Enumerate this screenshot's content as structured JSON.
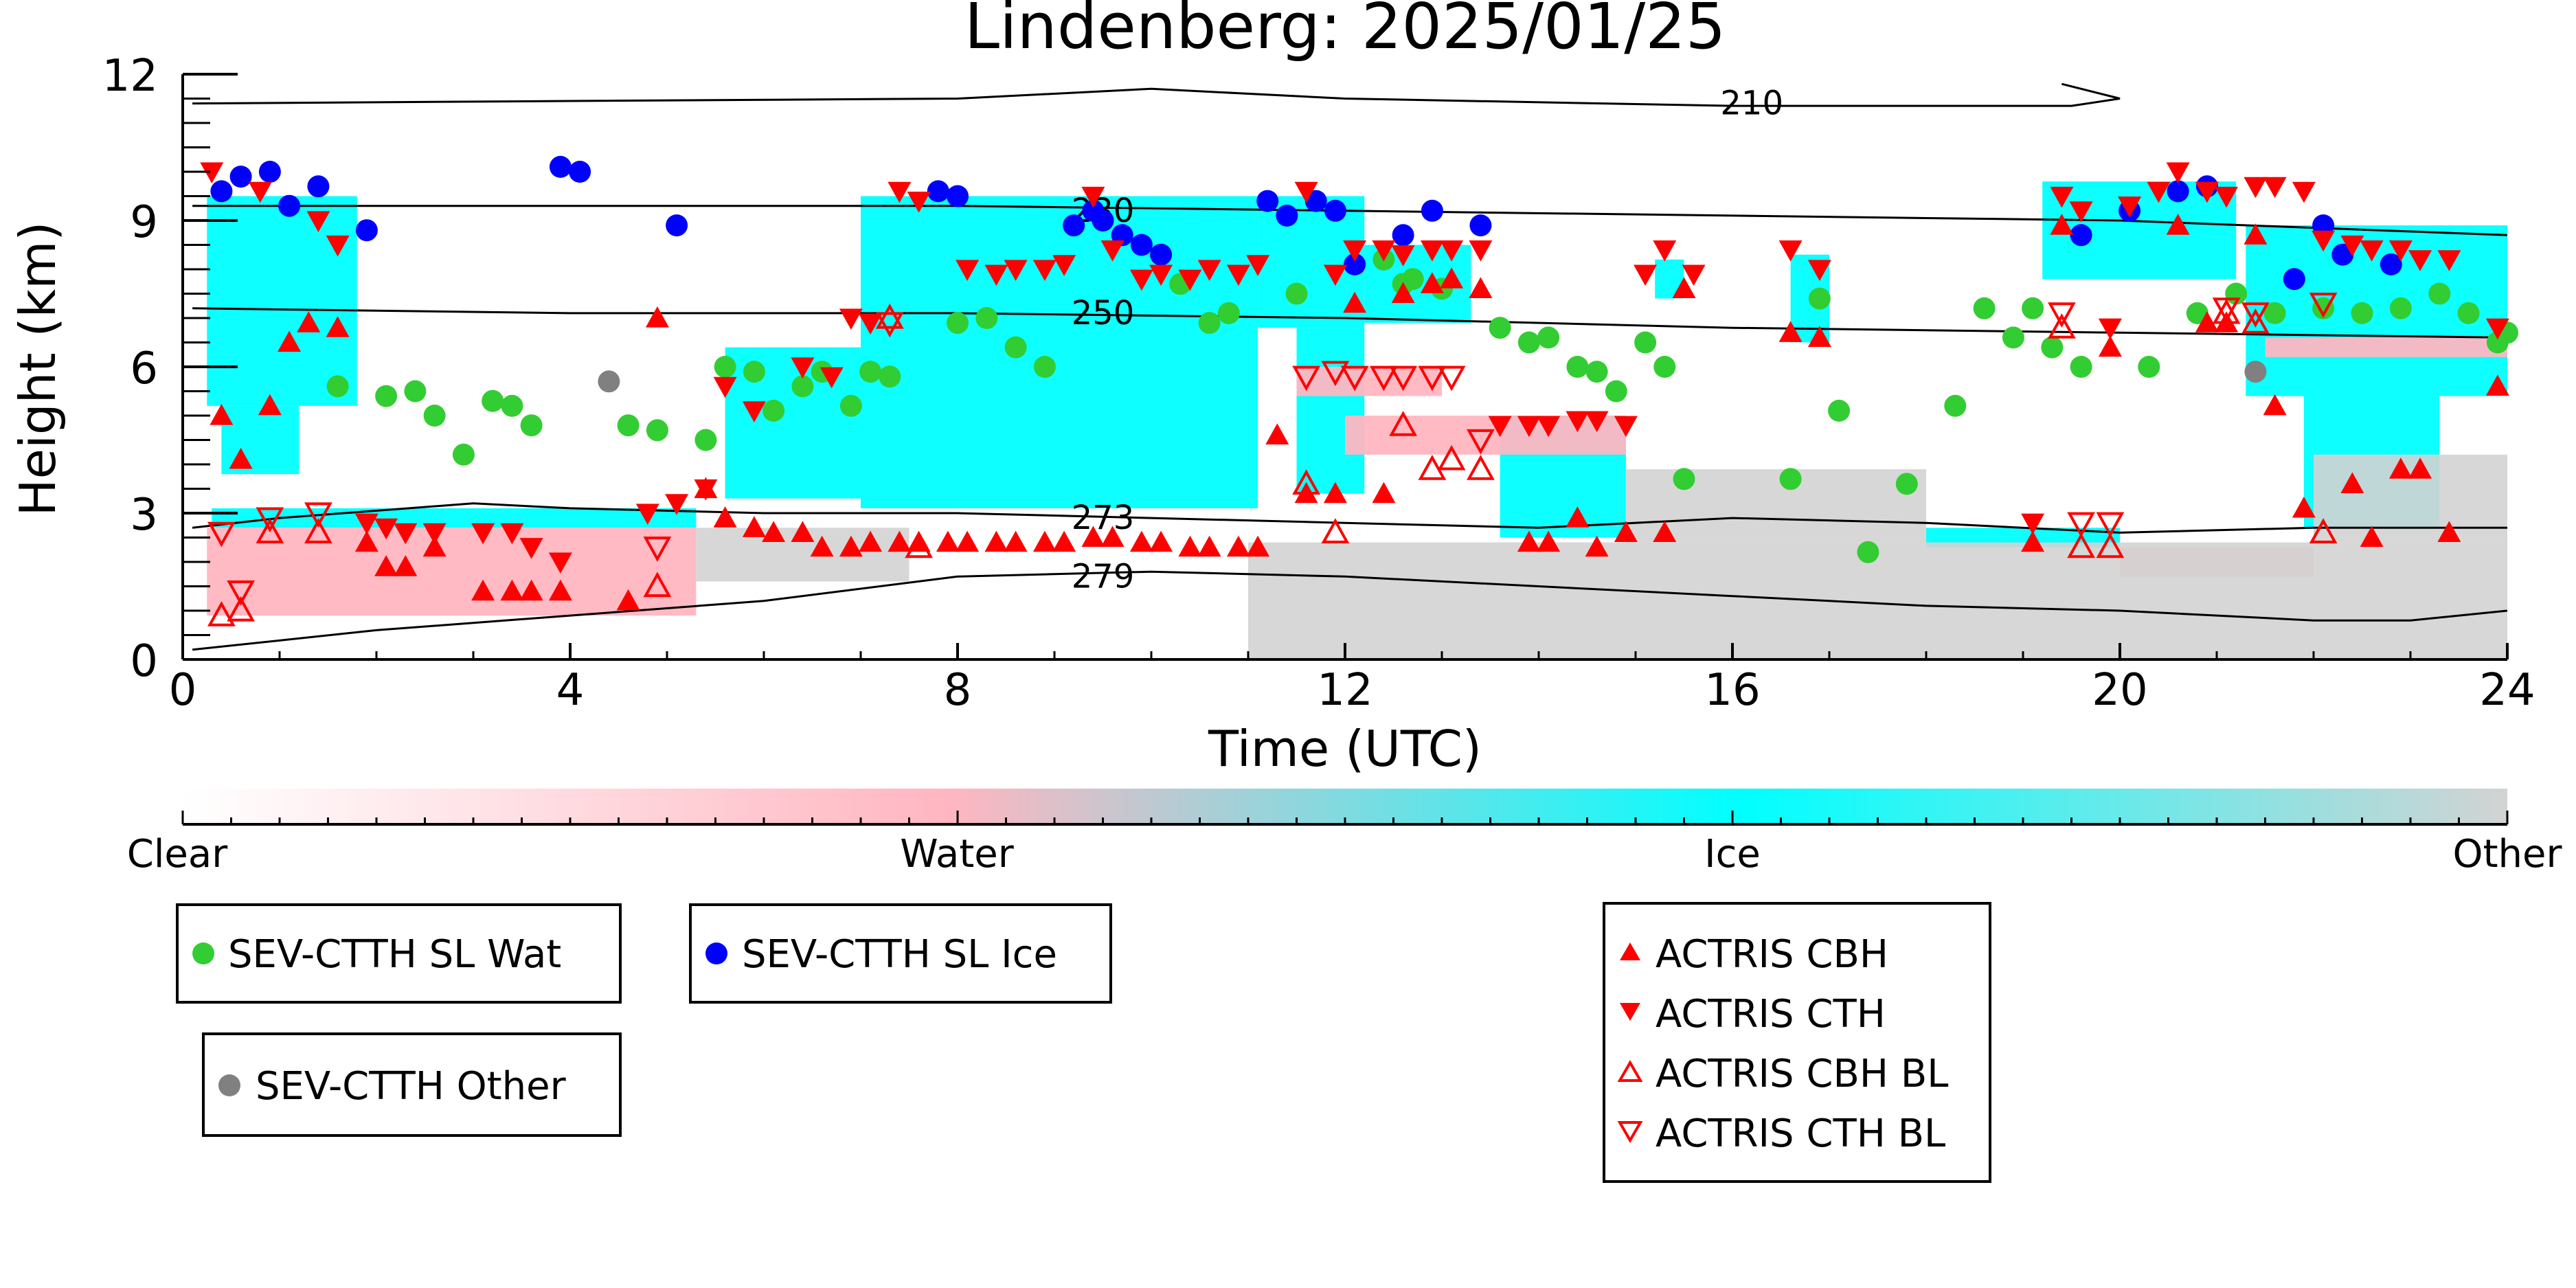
{
  "chart_data": {
    "type": "scatter",
    "title": "Lindenberg: 2025/01/25",
    "xlabel": "Time (UTC)",
    "ylabel": "Height (km)",
    "xlim": [
      0,
      24
    ],
    "ylim": [
      0,
      12
    ],
    "xticks": [
      0,
      4,
      8,
      12,
      16,
      20,
      24
    ],
    "yticks": [
      0,
      3,
      6,
      9,
      12
    ],
    "grid": false,
    "colorbar": {
      "orientation": "horizontal",
      "labels": [
        "Clear",
        "Water",
        "Ice",
        "Other"
      ],
      "colors": [
        "#ffffff",
        "#ffb6c1",
        "#00ffff",
        "#d3d3d3"
      ]
    },
    "colors": {
      "water": "#ffb6c1",
      "ice": "#00ffff",
      "other": "#d3d3d3",
      "sev_wat": "#32cd32",
      "sev_ice": "#0000ff",
      "sev_other": "#808080",
      "actris": "#ff0000"
    },
    "background_regions": [
      {
        "class": "ice",
        "x0": 0.25,
        "x1": 1.8,
        "y0": 5.2,
        "y1": 9.5
      },
      {
        "class": "ice",
        "x0": 0.4,
        "x1": 1.2,
        "y0": 3.8,
        "y1": 5.2
      },
      {
        "class": "ice",
        "x0": 5.6,
        "x1": 7.0,
        "y0": 3.3,
        "y1": 6.4
      },
      {
        "class": "ice",
        "x0": 7.0,
        "x1": 11.1,
        "y0": 3.1,
        "y1": 9.5
      },
      {
        "class": "ice",
        "x0": 11.1,
        "x1": 12.2,
        "y0": 6.8,
        "y1": 9.5
      },
      {
        "class": "ice",
        "x0": 11.5,
        "x1": 12.2,
        "y0": 3.4,
        "y1": 6.8
      },
      {
        "class": "ice",
        "x0": 12.2,
        "x1": 13.3,
        "y0": 6.9,
        "y1": 8.5
      },
      {
        "class": "ice",
        "x0": 13.6,
        "x1": 14.9,
        "y0": 2.5,
        "y1": 5.0
      },
      {
        "class": "ice",
        "x0": 15.2,
        "x1": 15.5,
        "y0": 7.4,
        "y1": 8.2
      },
      {
        "class": "ice",
        "x0": 16.6,
        "x1": 17.0,
        "y0": 6.5,
        "y1": 8.3
      },
      {
        "class": "ice",
        "x0": 19.2,
        "x1": 21.2,
        "y0": 7.8,
        "y1": 9.8
      },
      {
        "class": "ice",
        "x0": 21.3,
        "x1": 24.0,
        "y0": 5.4,
        "y1": 8.9
      },
      {
        "class": "ice",
        "x0": 21.9,
        "x1": 23.3,
        "y0": 2.7,
        "y1": 5.4
      },
      {
        "class": "ice",
        "x0": 0.3,
        "x1": 5.3,
        "y0": 2.7,
        "y1": 3.1
      },
      {
        "class": "ice",
        "x0": 18.0,
        "x1": 20.0,
        "y0": 2.3,
        "y1": 2.7
      },
      {
        "class": "water",
        "x0": 0.25,
        "x1": 5.3,
        "y0": 0.9,
        "y1": 2.7
      },
      {
        "class": "water",
        "x0": 12.0,
        "x1": 14.9,
        "y0": 4.2,
        "y1": 5.0
      },
      {
        "class": "water",
        "x0": 11.5,
        "x1": 13.0,
        "y0": 5.4,
        "y1": 6.0
      },
      {
        "class": "water",
        "x0": 21.5,
        "x1": 24.0,
        "y0": 6.2,
        "y1": 6.6
      },
      {
        "class": "water",
        "x0": 20.0,
        "x1": 22.0,
        "y0": 1.7,
        "y1": 2.3
      },
      {
        "class": "other",
        "x0": 5.3,
        "x1": 7.5,
        "y0": 1.6,
        "y1": 2.7
      },
      {
        "class": "other",
        "x0": 11.0,
        "x1": 24.0,
        "y0": 0.0,
        "y1": 2.4
      },
      {
        "class": "other",
        "x0": 14.9,
        "x1": 18.0,
        "y0": 2.4,
        "y1": 3.9
      },
      {
        "class": "other",
        "x0": 22.0,
        "x1": 24.0,
        "y0": 2.4,
        "y1": 4.2
      }
    ],
    "contours": [
      {
        "label": "210",
        "label_x": 16.2,
        "label_y": 11.4,
        "x": [
          0.1,
          4,
          8,
          10,
          12,
          16,
          19.5,
          20.0,
          19.4
        ],
        "y": [
          11.4,
          11.45,
          11.5,
          11.7,
          11.5,
          11.35,
          11.35,
          11.5,
          11.8
        ]
      },
      {
        "label": "230",
        "label_x": 9.5,
        "label_y": 9.2,
        "x": [
          0.1,
          4,
          8,
          12,
          16,
          20,
          24
        ],
        "y": [
          9.3,
          9.3,
          9.3,
          9.2,
          9.1,
          9.0,
          8.7
        ]
      },
      {
        "label": "250",
        "label_x": 9.5,
        "label_y": 7.1,
        "x": [
          0.1,
          4,
          8,
          12,
          16,
          20,
          24
        ],
        "y": [
          7.2,
          7.1,
          7.1,
          7.0,
          6.8,
          6.7,
          6.6
        ]
      },
      {
        "label": "273",
        "label_x": 9.5,
        "label_y": 2.9,
        "x": [
          0.1,
          1,
          3,
          4,
          6,
          8,
          10,
          12,
          14,
          16,
          18,
          20,
          22,
          24
        ],
        "y": [
          2.7,
          2.9,
          3.2,
          3.1,
          3.0,
          3.0,
          2.9,
          2.8,
          2.7,
          2.9,
          2.8,
          2.6,
          2.7,
          2.7
        ]
      },
      {
        "label": "279",
        "label_x": 9.5,
        "label_y": 1.7,
        "x": [
          0.1,
          2,
          4,
          6,
          8,
          10,
          12,
          14,
          16,
          18,
          20,
          22,
          23,
          24
        ],
        "y": [
          0.2,
          0.6,
          0.9,
          1.2,
          1.7,
          1.8,
          1.7,
          1.5,
          1.3,
          1.1,
          1.0,
          0.8,
          0.8,
          1.0
        ]
      }
    ],
    "series": [
      {
        "name": "SEV-CTTH SL Wat",
        "marker": "circle",
        "color": "#32cd32",
        "x": [
          1.6,
          2.1,
          2.4,
          2.6,
          2.9,
          3.2,
          3.4,
          3.6,
          4.6,
          4.9,
          5.4,
          5.6,
          5.9,
          6.1,
          6.4,
          6.6,
          6.9,
          7.1,
          7.3,
          8.0,
          8.3,
          8.6,
          8.9,
          10.3,
          10.6,
          10.8,
          11.5,
          12.4,
          12.6,
          12.7,
          13.0,
          13.6,
          13.9,
          14.1,
          14.4,
          14.6,
          14.8,
          15.1,
          15.3,
          15.5,
          16.6,
          16.9,
          17.1,
          17.4,
          17.8,
          18.3,
          18.6,
          18.9,
          19.1,
          19.3,
          19.6,
          20.3,
          20.8,
          21.2,
          21.6,
          22.1,
          22.5,
          22.9,
          23.3,
          23.6,
          23.9,
          24.0
        ],
        "y": [
          5.6,
          5.4,
          5.5,
          5.0,
          4.2,
          5.3,
          5.2,
          4.8,
          4.8,
          4.7,
          4.5,
          6.0,
          5.9,
          5.1,
          5.6,
          5.9,
          5.2,
          5.9,
          5.8,
          6.9,
          7.0,
          6.4,
          6.0,
          7.7,
          6.9,
          7.1,
          7.5,
          8.2,
          7.7,
          7.8,
          7.6,
          6.8,
          6.5,
          6.6,
          6.0,
          5.9,
          5.5,
          6.5,
          6.0,
          3.7,
          3.7,
          7.4,
          5.1,
          2.2,
          3.6,
          5.2,
          7.2,
          6.6,
          7.2,
          6.4,
          6.0,
          6.0,
          7.1,
          7.5,
          7.1,
          7.2,
          7.1,
          7.2,
          7.5,
          7.1,
          6.5,
          6.7
        ]
      },
      {
        "name": "SEV-CTTH SL Ice",
        "marker": "circle",
        "color": "#0000ff",
        "x": [
          0.4,
          0.6,
          0.9,
          1.1,
          1.4,
          1.9,
          3.9,
          4.1,
          5.1,
          7.8,
          8.0,
          9.2,
          9.4,
          9.5,
          9.7,
          9.9,
          10.1,
          11.2,
          11.4,
          11.7,
          11.9,
          12.1,
          12.6,
          12.9,
          13.4,
          19.6,
          20.1,
          20.6,
          20.9,
          21.8,
          22.1,
          22.3,
          22.8
        ],
        "y": [
          9.6,
          9.9,
          10.0,
          9.3,
          9.7,
          8.8,
          10.1,
          10.0,
          8.9,
          9.6,
          9.5,
          8.9,
          9.2,
          9.0,
          8.7,
          8.5,
          8.3,
          9.4,
          9.1,
          9.4,
          9.2,
          8.1,
          8.7,
          9.2,
          8.9,
          8.7,
          9.2,
          9.6,
          9.7,
          7.8,
          8.9,
          8.3,
          8.1
        ]
      },
      {
        "name": "SEV-CTTH Other",
        "marker": "circle",
        "color": "#808080",
        "x": [
          4.4,
          21.4
        ],
        "y": [
          5.7,
          5.9
        ]
      },
      {
        "name": "ACTRIS CBH",
        "marker": "triangle-up",
        "color": "#ff0000",
        "filled": true,
        "x": [
          0.4,
          0.6,
          0.9,
          1.1,
          1.3,
          1.6,
          1.9,
          2.1,
          2.3,
          2.6,
          3.1,
          3.4,
          3.6,
          3.9,
          4.6,
          4.9,
          5.4,
          5.6,
          5.9,
          6.1,
          6.4,
          6.6,
          6.9,
          7.1,
          7.4,
          7.6,
          7.9,
          8.1,
          8.4,
          8.6,
          8.9,
          9.1,
          9.4,
          9.6,
          9.9,
          10.1,
          10.4,
          10.6,
          10.9,
          11.1,
          11.3,
          11.6,
          11.9,
          12.1,
          12.4,
          12.6,
          12.9,
          13.1,
          13.4,
          13.9,
          14.1,
          14.4,
          14.6,
          14.9,
          15.3,
          15.5,
          16.6,
          16.9,
          19.1,
          19.4,
          19.9,
          20.6,
          20.9,
          21.1,
          21.4,
          21.6,
          21.9,
          22.4,
          22.6,
          22.9,
          23.1,
          23.4,
          23.9
        ],
        "y": [
          5.0,
          4.1,
          5.2,
          6.5,
          6.9,
          6.8,
          2.4,
          1.9,
          1.9,
          2.3,
          1.4,
          1.4,
          1.4,
          1.4,
          1.2,
          7.0,
          3.5,
          2.9,
          2.7,
          2.6,
          2.6,
          2.3,
          2.3,
          2.4,
          2.4,
          2.4,
          2.4,
          2.4,
          2.4,
          2.4,
          2.4,
          2.4,
          2.5,
          2.5,
          2.4,
          2.4,
          2.3,
          2.3,
          2.3,
          2.3,
          4.6,
          3.4,
          3.4,
          7.3,
          3.4,
          7.5,
          7.7,
          7.8,
          7.6,
          2.4,
          2.4,
          2.9,
          2.3,
          2.6,
          2.6,
          7.6,
          6.7,
          6.6,
          2.4,
          8.9,
          6.4,
          8.9,
          6.9,
          6.9,
          8.7,
          5.2,
          3.1,
          3.6,
          2.5,
          3.9,
          3.9,
          2.6,
          5.6
        ]
      },
      {
        "name": "ACTRIS CTH",
        "marker": "triangle-down",
        "color": "#ff0000",
        "filled": true,
        "x": [
          0.3,
          0.8,
          1.4,
          1.6,
          1.9,
          2.1,
          2.3,
          2.6,
          3.1,
          3.4,
          3.6,
          3.9,
          4.8,
          5.1,
          5.4,
          5.6,
          5.9,
          6.4,
          6.7,
          6.9,
          7.1,
          7.4,
          7.6,
          8.1,
          8.4,
          8.6,
          8.9,
          9.1,
          9.4,
          9.6,
          9.9,
          10.1,
          10.4,
          10.6,
          10.9,
          11.1,
          11.6,
          11.9,
          12.1,
          12.4,
          12.6,
          12.9,
          13.1,
          13.4,
          13.6,
          13.9,
          14.1,
          14.4,
          14.6,
          14.9,
          15.1,
          15.3,
          15.6,
          16.6,
          16.9,
          19.1,
          19.4,
          19.6,
          19.9,
          20.1,
          20.4,
          20.6,
          20.9,
          21.1,
          21.4,
          21.6,
          21.9,
          22.1,
          22.4,
          22.6,
          22.9,
          23.1,
          23.4,
          23.9
        ],
        "y": [
          10.0,
          9.6,
          9.0,
          8.5,
          2.8,
          2.7,
          2.6,
          2.6,
          2.6,
          2.6,
          2.3,
          2.0,
          3.0,
          3.2,
          3.5,
          5.6,
          5.1,
          6.0,
          5.8,
          7.0,
          6.9,
          9.6,
          9.4,
          8.0,
          7.9,
          8.0,
          8.0,
          8.1,
          9.5,
          8.4,
          7.8,
          7.9,
          7.8,
          8.0,
          7.9,
          8.1,
          9.6,
          7.9,
          8.4,
          8.4,
          8.3,
          8.4,
          8.4,
          8.4,
          4.8,
          4.8,
          4.8,
          4.9,
          4.9,
          4.8,
          7.9,
          8.4,
          7.9,
          8.4,
          8.0,
          2.8,
          9.5,
          9.2,
          6.8,
          9.3,
          9.6,
          10.0,
          9.6,
          9.5,
          9.7,
          9.7,
          9.6,
          8.6,
          8.5,
          8.4,
          8.4,
          8.2,
          8.2,
          6.8
        ]
      },
      {
        "name": "ACTRIS CBH BL",
        "marker": "triangle-up",
        "color": "#ff0000",
        "filled": false,
        "x": [
          0.4,
          0.6,
          0.9,
          1.4,
          4.9,
          7.3,
          7.6,
          11.6,
          11.9,
          12.6,
          12.9,
          13.1,
          13.4,
          19.4,
          19.6,
          19.9,
          21.1,
          21.4,
          22.1
        ],
        "y": [
          0.9,
          1.0,
          2.6,
          2.6,
          1.5,
          7.0,
          2.3,
          3.6,
          2.6,
          4.8,
          3.9,
          4.1,
          3.9,
          6.8,
          2.3,
          2.3,
          7.1,
          6.9,
          2.6
        ]
      },
      {
        "name": "ACTRIS CTH BL",
        "marker": "triangle-down",
        "color": "#ff0000",
        "filled": false,
        "x": [
          0.4,
          0.6,
          0.9,
          1.4,
          4.9,
          7.3,
          11.6,
          11.9,
          12.1,
          12.4,
          12.6,
          12.9,
          13.1,
          13.4,
          19.4,
          19.6,
          19.9,
          21.1,
          21.4,
          22.1
        ],
        "y": [
          2.6,
          1.4,
          2.9,
          3.0,
          2.3,
          6.9,
          5.8,
          5.9,
          5.8,
          5.8,
          5.8,
          5.8,
          5.8,
          4.5,
          7.1,
          2.8,
          2.8,
          7.2,
          7.1,
          7.3
        ]
      }
    ],
    "legends": [
      {
        "entries": [
          "SEV-CTTH SL Wat"
        ]
      },
      {
        "entries": [
          "SEV-CTTH SL Ice"
        ]
      },
      {
        "entries": [
          "SEV-CTTH Other"
        ]
      },
      {
        "entries": [
          "ACTRIS CBH",
          "ACTRIS CTH",
          "ACTRIS CBH BL",
          "ACTRIS CTH BL"
        ]
      }
    ]
  }
}
